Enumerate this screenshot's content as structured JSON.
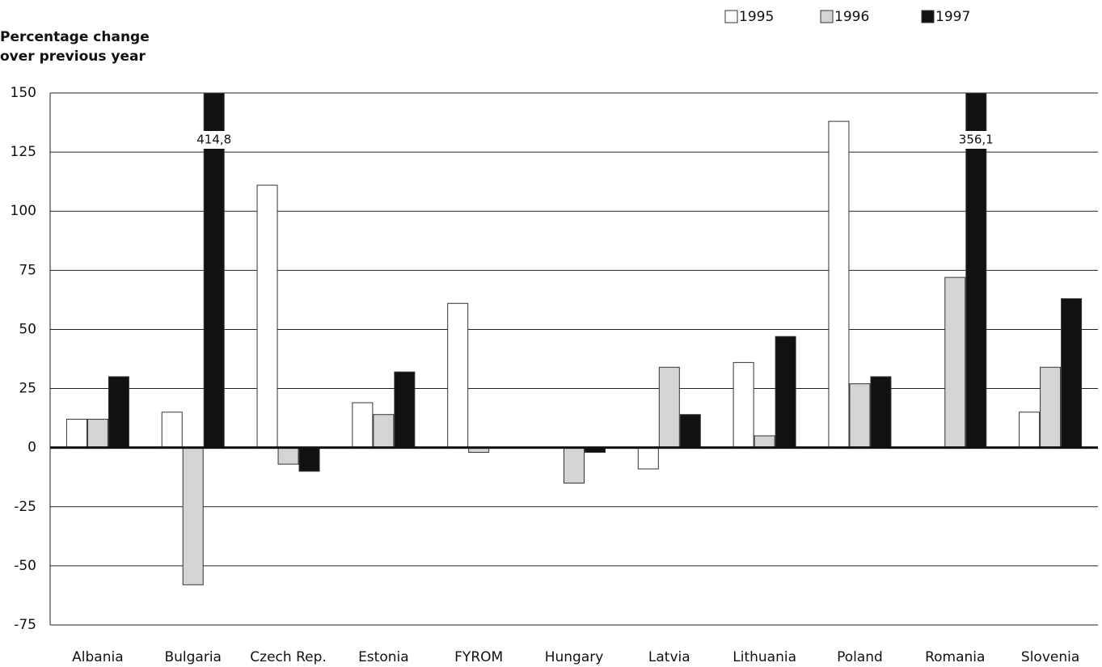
{
  "chart_data": {
    "type": "bar",
    "ylabel": [
      "Percentage change",
      "over previous year"
    ],
    "categories": [
      "Albania",
      "Bulgaria",
      "Czech Rep.",
      "Estonia",
      "FYROM",
      "Hungary",
      "Latvia",
      "Lithuania",
      "Poland",
      "Romania",
      "Slovenia"
    ],
    "series": [
      {
        "name": "1995",
        "color": "#ffffff",
        "values": [
          12,
          15,
          111,
          19,
          61,
          null,
          -9,
          36,
          138,
          null,
          15
        ]
      },
      {
        "name": "1996",
        "color": "#d4d4d4",
        "values": [
          12,
          -58,
          -7,
          14,
          -2,
          -15,
          34,
          5,
          27,
          72,
          34
        ]
      },
      {
        "name": "1997",
        "color": "#111111",
        "values": [
          30,
          414.8,
          -10,
          32,
          null,
          -2,
          14,
          47,
          30,
          356.1,
          63
        ],
        "value_labels": [
          null,
          "414,8",
          null,
          null,
          null,
          null,
          null,
          null,
          null,
          "356,1",
          null
        ]
      }
    ],
    "ylim": [
      -75,
      150
    ],
    "yticks": [
      -75,
      -50,
      -25,
      0,
      25,
      50,
      75,
      100,
      125,
      150
    ],
    "grid": true
  }
}
